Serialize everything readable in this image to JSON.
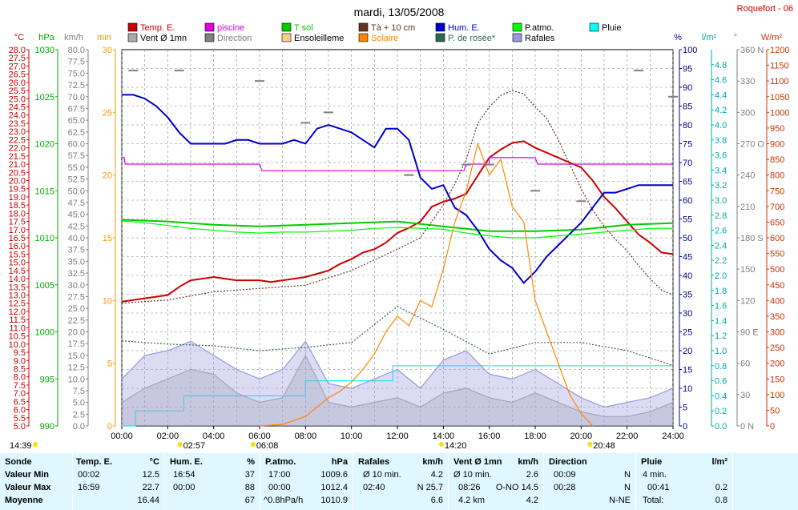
{
  "header": {
    "title": "mardi, 13/05/2008",
    "site": "Roquefort - 06"
  },
  "axis_units": [
    {
      "text": "°C",
      "color": "#cc0000"
    },
    {
      "text": "hPa",
      "color": "#00aa00"
    },
    {
      "text": "km/h",
      "color": "#808080"
    },
    {
      "text": "min",
      "color": "#ff9900"
    },
    {
      "text": "%",
      "color": "#000080"
    },
    {
      "text": "l/m²",
      "color": "#00aaaa"
    },
    {
      "text": "°",
      "color": "#808080"
    },
    {
      "text": "W/m²",
      "color": "#cc3300"
    }
  ],
  "legend": [
    {
      "label": "Temp. E.",
      "color": "#cc0000"
    },
    {
      "label": "piscine",
      "color": "#dd00dd"
    },
    {
      "label": "T sol",
      "color": "#00cc00"
    },
    {
      "label": "Tà + 10 cm",
      "color": "#663322"
    },
    {
      "label": "Hum. E.",
      "color": "#0000cc"
    },
    {
      "label": "P.atmo.",
      "color": "#00ff00"
    },
    {
      "label": "Pluie",
      "color": "#00ffff"
    },
    {
      "label": "Vent Ø 1mn",
      "color": "#aaaaaa"
    },
    {
      "label": "Direction",
      "color": "#808080"
    },
    {
      "label": "Ensoleilleme",
      "color": "#ffcc88"
    },
    {
      "label": "Solaire",
      "color": "#ff8800"
    },
    {
      "label": "P. de rosée*",
      "color": "#336655"
    },
    {
      "label": "Rafales",
      "color": "#9999dd"
    }
  ],
  "time_markers": [
    {
      "time": "14:39",
      "label": "14:39"
    },
    {
      "time": "02:57",
      "label": "02:57"
    },
    {
      "time": "06:08",
      "label": "06:08"
    },
    {
      "time": "14:20",
      "label": "14:20"
    },
    {
      "time": "20:48",
      "label": "20:48"
    }
  ],
  "chart_data": {
    "type": "line",
    "title": "mardi, 13/05/2008",
    "x_ticks": [
      "00:00",
      "02:00",
      "04:00",
      "06:00",
      "08:00",
      "10:00",
      "12:00",
      "14:00",
      "16:00",
      "18:00",
      "20:00",
      "22:00",
      "24:00"
    ],
    "axes": {
      "temperature_c": {
        "range": [
          5.0,
          28.0
        ],
        "ticks": [
          "28.0",
          "27.5",
          "27.0",
          "26.5",
          "26.0",
          "25.5",
          "25.0",
          "24.5",
          "24.0",
          "23.5",
          "23.0",
          "22.5",
          "22.0",
          "21.5",
          "21.0",
          "20.5",
          "20.0",
          "19.5",
          "19.0",
          "18.5",
          "18.0",
          "17.5",
          "17.0",
          "16.5",
          "16.0",
          "15.5",
          "15.0",
          "14.5",
          "14.0",
          "13.5",
          "13.0",
          "12.5",
          "12.0",
          "11.5",
          "11.0",
          "10.5",
          "10.0",
          "9.5",
          "9.0",
          "8.5",
          "8.0",
          "7.5",
          "7.0",
          "6.5",
          "6.0",
          "5.5",
          "5.0"
        ]
      },
      "pressure_hpa": {
        "range": [
          990,
          1030
        ],
        "ticks": [
          "1030",
          "1025",
          "1020",
          "1015",
          "1010",
          "1005",
          "1000",
          "995",
          "990"
        ]
      },
      "wind_kmh": {
        "range": [
          0.0,
          80.0
        ],
        "ticks": [
          "80.0",
          "77.5",
          "75.0",
          "72.5",
          "70.0",
          "67.5",
          "65.0",
          "62.5",
          "60.0",
          "57.5",
          "55.0",
          "52.5",
          "50.0",
          "47.5",
          "45.0",
          "42.5",
          "40.0",
          "37.5",
          "35.0",
          "32.5",
          "30.0",
          "27.5",
          "25.0",
          "22.5",
          "20.0",
          "17.5",
          "15.0",
          "12.5",
          "10.0",
          "7.5",
          "5.0",
          "2.5",
          "0.0"
        ]
      },
      "sunshine_min": {
        "range": [
          0,
          30
        ],
        "ticks": [
          "30",
          "25",
          "20",
          "15",
          "10",
          "5",
          "0"
        ]
      },
      "humidity_pct": {
        "range": [
          0,
          100
        ],
        "ticks": [
          "100",
          "95",
          "90",
          "85",
          "80",
          "75",
          "70",
          "65",
          "60",
          "55",
          "50",
          "45",
          "40",
          "35",
          "30",
          "25",
          "20",
          "15",
          "10",
          "5",
          "0"
        ]
      },
      "rain_lm2": {
        "range": [
          0.0,
          5.0
        ],
        "ticks": [
          "4.8",
          "4.6",
          "4.4",
          "4.2",
          "4.0",
          "3.8",
          "3.6",
          "3.4",
          "3.2",
          "3.0",
          "2.8",
          "2.6",
          "2.4",
          "2.2",
          "2.0",
          "1.8",
          "1.6",
          "1.4",
          "1.2",
          "1.0",
          "0.8",
          "0.6",
          "0.4",
          "0.2",
          "0.0"
        ]
      },
      "direction_deg": {
        "range": [
          0,
          360
        ],
        "ticks": [
          "360 N",
          "330",
          "300",
          "270 O",
          "240",
          "210",
          "180 S",
          "150",
          "120",
          "90 E",
          "60",
          "30",
          "0 N"
        ]
      },
      "solar_wm2": {
        "range": [
          0,
          1200
        ],
        "ticks": [
          "1200",
          "1150",
          "1100",
          "1050",
          "1000",
          "950",
          "900",
          "850",
          "800",
          "750",
          "700",
          "650",
          "600",
          "550",
          "500",
          "450",
          "400",
          "350",
          "300",
          "250",
          "200",
          "150",
          "100",
          "50",
          "0"
        ]
      }
    },
    "series": [
      {
        "name": "Temp. E.",
        "color": "#cc0000",
        "axis": "temperature_c",
        "x": [
          0,
          0.5,
          1,
          1.5,
          2,
          2.5,
          3,
          3.5,
          4,
          4.5,
          5,
          5.5,
          6,
          6.5,
          7,
          7.5,
          8,
          8.5,
          9,
          9.5,
          10,
          10.5,
          11,
          11.5,
          12,
          12.5,
          13,
          13.5,
          14,
          14.5,
          15,
          15.5,
          16,
          16.5,
          17,
          17.5,
          18,
          18.5,
          19,
          19.5,
          20,
          20.5,
          21,
          21.5,
          22,
          22.5,
          23,
          23.5,
          24
        ],
        "y": [
          12.6,
          12.7,
          12.8,
          12.9,
          13.0,
          13.5,
          13.9,
          14.0,
          14.1,
          14.0,
          13.9,
          13.9,
          13.9,
          13.8,
          13.9,
          14.0,
          14.1,
          14.3,
          14.5,
          14.9,
          15.2,
          15.6,
          15.8,
          16.2,
          16.8,
          17.1,
          17.5,
          18.4,
          18.7,
          18.9,
          19.2,
          20.3,
          21.4,
          21.9,
          22.3,
          22.4,
          22.0,
          21.7,
          21.4,
          21.1,
          20.8,
          20.0,
          19.0,
          18.3,
          17.5,
          16.7,
          16.2,
          15.6,
          15.5
        ]
      },
      {
        "name": "piscine",
        "color": "#dd00dd",
        "axis": "temperature_c",
        "x": [
          0,
          0.1,
          0.15,
          4,
          6,
          6.1,
          8,
          12,
          14,
          14.9,
          15,
          16,
          16,
          18,
          18.1,
          20,
          20.1,
          24
        ],
        "y": [
          21.4,
          21.4,
          21.0,
          21.0,
          21.0,
          20.6,
          20.6,
          20.6,
          20.6,
          20.6,
          21.0,
          21.0,
          21.4,
          21.4,
          21.0,
          21.0,
          21.0,
          21.0
        ]
      },
      {
        "name": "T sol",
        "color": "#00cc00",
        "axis": "temperature_c",
        "x": [
          0,
          2,
          4,
          6,
          8,
          10,
          12,
          14,
          16,
          18,
          20,
          22,
          24
        ],
        "y": [
          17.6,
          17.5,
          17.3,
          17.2,
          17.3,
          17.4,
          17.5,
          17.2,
          16.9,
          16.9,
          17.0,
          17.3,
          17.4
        ]
      },
      {
        "name": "Tà + 10 cm",
        "color": "#663322",
        "axis": "temperature_c",
        "x": [
          0,
          2,
          4,
          6,
          8,
          10,
          12,
          13,
          14,
          14.5,
          15,
          15.5,
          16,
          16.5,
          17,
          17.5,
          18,
          18.5,
          19,
          19.5,
          20,
          20.5,
          21,
          21.5,
          22,
          22.5,
          23,
          23.5,
          24
        ],
        "y": [
          12.5,
          12.7,
          13.2,
          13.4,
          13.6,
          14.5,
          15.8,
          16.5,
          18.5,
          19.8,
          21.3,
          23.5,
          24.5,
          25.2,
          25.5,
          25.3,
          24.5,
          23.8,
          22.5,
          21.0,
          19.5,
          18.2,
          17.2,
          16.4,
          15.7,
          14.8,
          14.0,
          13.3,
          13.0
        ]
      },
      {
        "name": "Hum. E.",
        "color": "#0000cc",
        "axis": "humidity_pct",
        "x": [
          0,
          0.5,
          1,
          1.5,
          2,
          2.5,
          3,
          3.5,
          4,
          4.5,
          5,
          5.5,
          6,
          6.5,
          7,
          7.5,
          8,
          8.5,
          9,
          9.5,
          10,
          10.5,
          11,
          11.5,
          12,
          12.5,
          13,
          13.5,
          14,
          14.5,
          15,
          15.5,
          16,
          16.5,
          17,
          17.5,
          18,
          18.5,
          19,
          19.5,
          20,
          20.5,
          21,
          21.5,
          22,
          22.5,
          23,
          23.5,
          24
        ],
        "y": [
          88,
          88,
          87,
          85,
          82,
          78,
          75,
          75,
          75,
          75,
          76,
          76,
          75,
          75,
          75,
          76,
          75,
          79,
          80,
          79,
          78,
          76,
          74,
          79,
          79,
          76,
          66,
          63,
          64,
          58,
          56,
          52,
          47,
          44,
          42,
          38,
          41,
          45,
          48,
          51,
          54,
          58,
          62,
          62,
          63,
          64,
          64,
          64,
          64
        ]
      },
      {
        "name": "P.atmo.",
        "color": "#00ff00",
        "axis": "pressure_hpa",
        "x": [
          0,
          1,
          2,
          3,
          4,
          5,
          6,
          7,
          8,
          9,
          10,
          11,
          12,
          13,
          14,
          15,
          16,
          17,
          18,
          19,
          20,
          21,
          22,
          23,
          24
        ],
        "y": [
          1011.8,
          1011.6,
          1011.3,
          1011.0,
          1010.8,
          1010.6,
          1010.5,
          1010.6,
          1010.6,
          1010.7,
          1010.8,
          1011.0,
          1011.1,
          1011.0,
          1010.9,
          1010.5,
          1010.2,
          1010.0,
          1010.0,
          1010.2,
          1010.4,
          1010.6,
          1010.8,
          1011.0,
          1011.0
        ]
      },
      {
        "name": "Pluie",
        "color": "#00ffff",
        "axis": "rain_lm2",
        "x": [
          0,
          0.6,
          0.6,
          2.7,
          2.7,
          8,
          8,
          11.8,
          11.8,
          13.3,
          13.3,
          14.9,
          14.9,
          19.7,
          19.7,
          24
        ],
        "y": [
          0,
          0,
          0.2,
          0.2,
          0.4,
          0.4,
          0.6,
          0.6,
          0.8,
          0.8,
          0.8,
          0.8,
          0.8,
          0.8,
          0.8,
          0.8
        ]
      },
      {
        "name": "Vent Ø 1mn",
        "color": "#aaaaaa",
        "axis": "wind_kmh",
        "x": [
          0,
          1,
          2,
          3,
          4,
          5,
          6,
          7,
          8,
          9,
          10,
          11,
          12,
          13,
          14,
          15,
          16,
          17,
          18,
          19,
          20,
          21,
          22,
          23,
          24
        ],
        "y": [
          5,
          8,
          10,
          12,
          11,
          7,
          5,
          6,
          15,
          5,
          4,
          5,
          6,
          4,
          7,
          8,
          6,
          5,
          7,
          5,
          3,
          2,
          2,
          3,
          5
        ]
      },
      {
        "name": "Rafales",
        "color": "#9999dd",
        "axis": "wind_kmh",
        "x": [
          0,
          1,
          2,
          3,
          4,
          5,
          6,
          7,
          8,
          9,
          10,
          11,
          12,
          13,
          14,
          15,
          16,
          17,
          18,
          19,
          20,
          21,
          22,
          23,
          24
        ],
        "y": [
          10,
          15,
          16,
          18,
          15,
          12,
          10,
          12,
          18,
          9,
          8,
          10,
          12,
          8,
          14,
          16,
          11,
          10,
          12,
          9,
          6,
          4,
          5,
          6,
          8
        ]
      },
      {
        "name": "Solaire",
        "color": "#ff8800",
        "axis": "solar_wm2",
        "x": [
          6,
          7,
          8,
          8.5,
          9,
          9.5,
          10,
          10.5,
          11,
          11.5,
          12,
          12.5,
          13,
          13.5,
          14,
          14.5,
          15,
          15.5,
          16,
          16.5,
          17,
          17.5,
          18,
          18.5,
          19,
          19.5,
          20,
          20.5
        ],
        "y": [
          0,
          5,
          30,
          60,
          90,
          110,
          140,
          180,
          230,
          300,
          350,
          320,
          400,
          380,
          500,
          650,
          750,
          900,
          800,
          850,
          700,
          650,
          400,
          300,
          200,
          100,
          40,
          0
        ]
      },
      {
        "name": "P. de rosée*",
        "color": "#336655",
        "axis": "temperature_c",
        "x": [
          0,
          2,
          4,
          6,
          8,
          10,
          12,
          14,
          16,
          18,
          20,
          22,
          24
        ],
        "y": [
          10.2,
          10.0,
          9.9,
          9.6,
          9.8,
          10.1,
          12.3,
          10.9,
          9.4,
          10.1,
          10.1,
          9.6,
          8.7
        ]
      },
      {
        "name": "Direction",
        "color": "#808080",
        "axis": "direction_deg",
        "x": [
          0.5,
          2.5,
          6,
          8,
          9,
          12.5,
          15,
          16,
          18,
          20,
          22.5,
          24
        ],
        "y": [
          340,
          340,
          330,
          290,
          300,
          240,
          250,
          250,
          225,
          215,
          340,
          315
        ]
      }
    ]
  },
  "stats_table": {
    "col_sonde": {
      "head": "Sonde",
      "rows": [
        "Valeur Min",
        "Valeur Max",
        "Moyenne"
      ]
    },
    "col_temp": {
      "head": "Temp. E.",
      "unit": "°C",
      "rows": [
        [
          "00:02",
          "12.5"
        ],
        [
          "16:59",
          "22.7"
        ],
        [
          "",
          "16.44"
        ]
      ]
    },
    "col_hum": {
      "head": "Hum. E.",
      "unit": "%",
      "rows": [
        [
          "16:54",
          "37"
        ],
        [
          "00:00",
          "88"
        ],
        [
          "",
          "67"
        ]
      ]
    },
    "col_patmo": {
      "head": "P.atmo.",
      "unit": "hPa",
      "rows": [
        [
          "17:00",
          "1009.6"
        ],
        [
          "00:00",
          "1012.4"
        ],
        [
          "^0.8hPa/h",
          "1010.9"
        ]
      ]
    },
    "col_rafales": {
      "head": "Rafales",
      "unit": "km/h",
      "rows": [
        [
          "Ø 10 min.",
          "4.2"
        ],
        [
          "02:40",
          "N 25.7"
        ],
        [
          "",
          "6.6"
        ]
      ]
    },
    "col_vent": {
      "head": "Vent Ø 1mn",
      "unit": "km/h",
      "rows": [
        [
          "Ø 10 min.",
          "2.6"
        ],
        [
          "08:26",
          "O-NO 14.5"
        ],
        [
          "4.2 km",
          "4.2"
        ]
      ]
    },
    "col_dir": {
      "head": "Direction",
      "rows": [
        [
          "00:09",
          "N"
        ],
        [
          "00:28",
          "N"
        ],
        [
          "",
          "N-NE"
        ]
      ]
    },
    "col_pluie": {
      "head": "Pluie",
      "unit": "l/m²",
      "rows": [
        [
          "4 min.",
          ""
        ],
        [
          "00:41",
          "0.2"
        ],
        [
          "Total:",
          "0.8"
        ]
      ]
    }
  }
}
